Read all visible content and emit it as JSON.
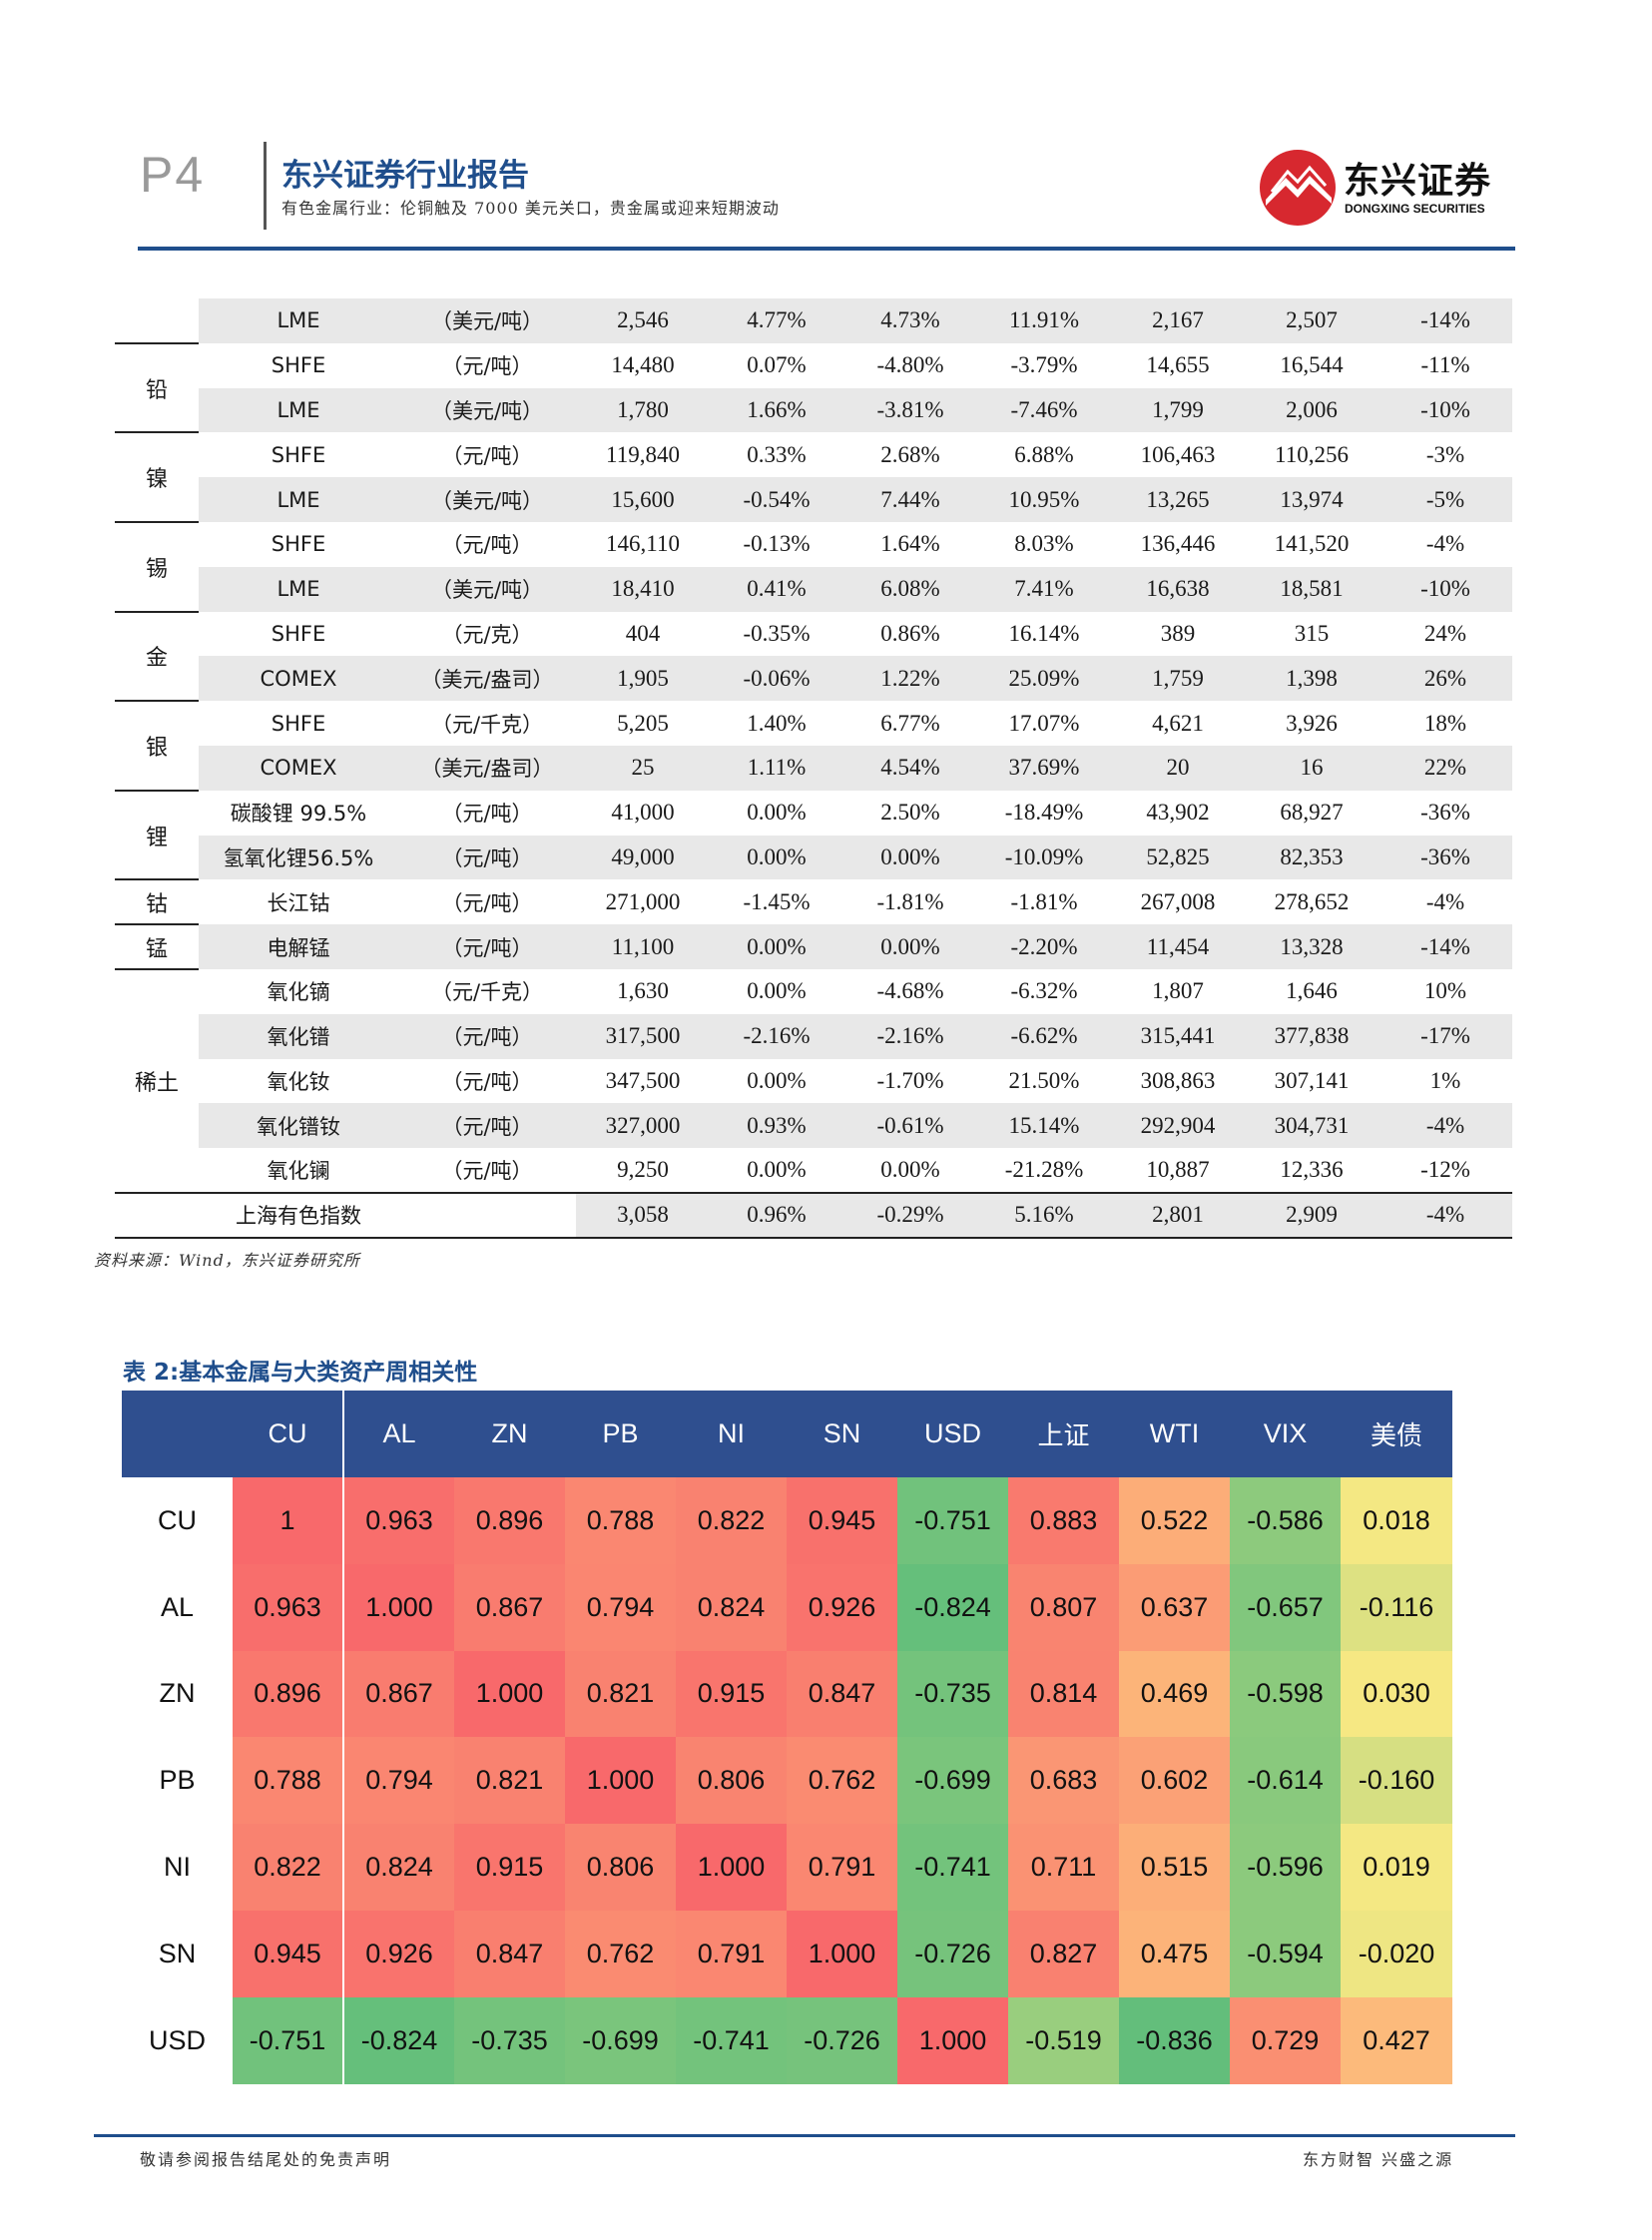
{
  "header": {
    "page": "P4",
    "title": "东兴证券行业报告",
    "subtitle": "有色金属行业：伦铜触及 7000 美元关口，贵金属或迎来短期波动",
    "logo_cn": "东兴证券",
    "logo_en": "DONGXING SECURITIES",
    "brand_color": "#d7282f",
    "accent_color": "#1f4e8c"
  },
  "table1": {
    "rows": [
      {
        "metal": "",
        "exchange": "LME",
        "unit": "（美元/吨）",
        "v": [
          "2,546",
          "4.77%",
          "4.73%",
          "11.91%",
          "2,167",
          "2,507",
          "-14%"
        ]
      },
      {
        "metal": "铅",
        "exchange": "SHFE",
        "unit": "（元/吨）",
        "v": [
          "14,480",
          "0.07%",
          "-4.80%",
          "-3.79%",
          "14,655",
          "16,544",
          "-11%"
        ]
      },
      {
        "metal": "",
        "exchange": "LME",
        "unit": "（美元/吨）",
        "v": [
          "1,780",
          "1.66%",
          "-3.81%",
          "-7.46%",
          "1,799",
          "2,006",
          "-10%"
        ]
      },
      {
        "metal": "镍",
        "exchange": "SHFE",
        "unit": "（元/吨）",
        "v": [
          "119,840",
          "0.33%",
          "2.68%",
          "6.88%",
          "106,463",
          "110,256",
          "-3%"
        ]
      },
      {
        "metal": "",
        "exchange": "LME",
        "unit": "（美元/吨）",
        "v": [
          "15,600",
          "-0.54%",
          "7.44%",
          "10.95%",
          "13,265",
          "13,974",
          "-5%"
        ]
      },
      {
        "metal": "锡",
        "exchange": "SHFE",
        "unit": "（元/吨）",
        "v": [
          "146,110",
          "-0.13%",
          "1.64%",
          "8.03%",
          "136,446",
          "141,520",
          "-4%"
        ]
      },
      {
        "metal": "",
        "exchange": "LME",
        "unit": "（美元/吨）",
        "v": [
          "18,410",
          "0.41%",
          "6.08%",
          "7.41%",
          "16,638",
          "18,581",
          "-10%"
        ]
      },
      {
        "metal": "金",
        "exchange": "SHFE",
        "unit": "（元/克）",
        "v": [
          "404",
          "-0.35%",
          "0.86%",
          "16.14%",
          "389",
          "315",
          "24%"
        ]
      },
      {
        "metal": "",
        "exchange": "COMEX",
        "unit": "（美元/盎司）",
        "v": [
          "1,905",
          "-0.06%",
          "1.22%",
          "25.09%",
          "1,759",
          "1,398",
          "26%"
        ]
      },
      {
        "metal": "银",
        "exchange": "SHFE",
        "unit": "（元/千克）",
        "v": [
          "5,205",
          "1.40%",
          "6.77%",
          "17.07%",
          "4,621",
          "3,926",
          "18%"
        ]
      },
      {
        "metal": "",
        "exchange": "COMEX",
        "unit": "（美元/盎司）",
        "v": [
          "25",
          "1.11%",
          "4.54%",
          "37.69%",
          "20",
          "16",
          "22%"
        ]
      },
      {
        "metal": "锂",
        "exchange": "碳酸锂 99.5%",
        "unit": "（元/吨）",
        "v": [
          "41,000",
          "0.00%",
          "2.50%",
          "-18.49%",
          "43,902",
          "68,927",
          "-36%"
        ]
      },
      {
        "metal": "",
        "exchange": "氢氧化锂56.5%",
        "unit": "（元/吨）",
        "v": [
          "49,000",
          "0.00%",
          "0.00%",
          "-10.09%",
          "52,825",
          "82,353",
          "-36%"
        ]
      },
      {
        "metal": "钴",
        "exchange": "长江钴",
        "unit": "（元/吨）",
        "v": [
          "271,000",
          "-1.45%",
          "-1.81%",
          "-1.81%",
          "267,008",
          "278,652",
          "-4%"
        ]
      },
      {
        "metal": "锰",
        "exchange": "电解锰",
        "unit": "（元/吨）",
        "v": [
          "11,100",
          "0.00%",
          "0.00%",
          "-2.20%",
          "11,454",
          "13,328",
          "-14%"
        ]
      },
      {
        "metal": "",
        "exchange": "氧化镝",
        "unit": "（元/千克）",
        "v": [
          "1,630",
          "0.00%",
          "-4.68%",
          "-6.32%",
          "1,807",
          "1,646",
          "10%"
        ]
      },
      {
        "metal": "稀土",
        "exchange": "氧化镨",
        "unit": "（元/吨）",
        "v": [
          "317,500",
          "-2.16%",
          "-2.16%",
          "-6.62%",
          "315,441",
          "377,838",
          "-17%"
        ]
      },
      {
        "metal": "",
        "exchange": "氧化钕",
        "unit": "（元/吨）",
        "v": [
          "347,500",
          "0.00%",
          "-1.70%",
          "21.50%",
          "308,863",
          "307,141",
          "1%"
        ]
      },
      {
        "metal": "",
        "exchange": "氧化镨钕",
        "unit": "（元/吨）",
        "v": [
          "327,000",
          "0.93%",
          "-0.61%",
          "15.14%",
          "292,904",
          "304,731",
          "-4%"
        ]
      },
      {
        "metal": "",
        "exchange": "氧化镧",
        "unit": "（元/吨）",
        "v": [
          "9,250",
          "0.00%",
          "0.00%",
          "-21.28%",
          "10,887",
          "12,336",
          "-12%"
        ]
      },
      {
        "metal": "",
        "exchange": "上海有色指数",
        "unit": "",
        "v": [
          "3,058",
          "0.96%",
          "-0.29%",
          "5.16%",
          "2,801",
          "2,909",
          "-4%"
        ]
      }
    ],
    "source": "资料来源：Wind，东兴证券研究所"
  },
  "table2": {
    "title": "表 2:基本金属与大类资产周相关性",
    "columns": [
      "CU",
      "AL",
      "ZN",
      "PB",
      "NI",
      "SN",
      "USD",
      "上证",
      "WTI",
      "VIX",
      "美债"
    ],
    "rows": [
      {
        "label": "CU",
        "values": [
          "1",
          "0.963",
          "0.896",
          "0.788",
          "0.822",
          "0.945",
          "-0.751",
          "0.883",
          "0.522",
          "-0.586",
          "0.018"
        ]
      },
      {
        "label": "AL",
        "values": [
          "0.963",
          "1.000",
          "0.867",
          "0.794",
          "0.824",
          "0.926",
          "-0.824",
          "0.807",
          "0.637",
          "-0.657",
          "-0.116"
        ]
      },
      {
        "label": "ZN",
        "values": [
          "0.896",
          "0.867",
          "1.000",
          "0.821",
          "0.915",
          "0.847",
          "-0.735",
          "0.814",
          "0.469",
          "-0.598",
          "0.030"
        ]
      },
      {
        "label": "PB",
        "values": [
          "0.788",
          "0.794",
          "0.821",
          "1.000",
          "0.806",
          "0.762",
          "-0.699",
          "0.683",
          "0.602",
          "-0.614",
          "-0.160"
        ]
      },
      {
        "label": "NI",
        "values": [
          "0.822",
          "0.824",
          "0.915",
          "0.806",
          "1.000",
          "0.791",
          "-0.741",
          "0.711",
          "0.515",
          "-0.596",
          "0.019"
        ]
      },
      {
        "label": "SN",
        "values": [
          "0.945",
          "0.926",
          "0.847",
          "0.762",
          "0.791",
          "1.000",
          "-0.726",
          "0.827",
          "0.475",
          "-0.594",
          "-0.020"
        ]
      },
      {
        "label": "USD",
        "values": [
          "-0.751",
          "-0.824",
          "-0.735",
          "-0.699",
          "-0.741",
          "-0.726",
          "1.000",
          "-0.519",
          "-0.836",
          "0.729",
          "0.427"
        ]
      }
    ],
    "header_color": "#2f4f8f",
    "scale_colors": {
      "high": "#f8696b",
      "mid": "#ffeb84",
      "low": "#63be7b"
    }
  },
  "footer": {
    "left": "敬请参阅报告结尾处的免责声明",
    "right": "东方财智 兴盛之源"
  }
}
